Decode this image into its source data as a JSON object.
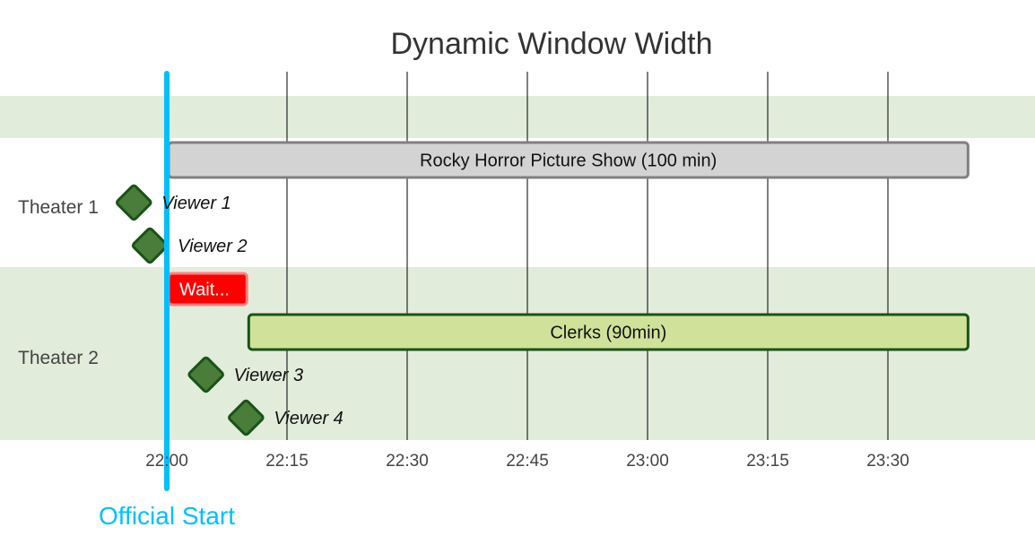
{
  "chart_data": {
    "type": "timeline",
    "title": "Dynamic Window Width",
    "x_ticks": [
      "22:00",
      "22:15",
      "22:30",
      "22:45",
      "23:00",
      "23:15",
      "23:30"
    ],
    "x_range_minutes": [
      -15,
      110
    ],
    "rows": [
      {
        "label": "Theater 1"
      },
      {
        "label": "Theater 2"
      }
    ],
    "tasks": [
      {
        "label": "Rocky Horror Picture Show (100 min)",
        "row": "Theater 1",
        "start": "22:00",
        "end": "23:40",
        "style": "movie1"
      },
      {
        "label": "Wait...",
        "row": "Theater 2",
        "start": "22:00",
        "end": "22:10",
        "style": "wait"
      },
      {
        "label": "Clerks (90min)",
        "row": "Theater 2",
        "start": "22:10",
        "end": "23:40",
        "style": "movie2"
      }
    ],
    "milestones": [
      {
        "label": "Viewer 1",
        "row": "Theater 1",
        "time": "21:56"
      },
      {
        "label": "Viewer 2",
        "row": "Theater 1",
        "time": "21:58"
      },
      {
        "label": "Viewer 3",
        "row": "Theater 2",
        "time": "22:05"
      },
      {
        "label": "Viewer 4",
        "row": "Theater 2",
        "time": "22:10"
      }
    ],
    "marker": {
      "label": "Official Start",
      "time": "22:00"
    },
    "colors": {
      "row_band": "#e1ecdb",
      "movie1_fill": "#d3d3d3",
      "movie1_border": "#808080",
      "wait_fill": "#ff0000",
      "wait_border": "#ff8080",
      "movie2_fill": "#d0e29a",
      "movie2_border": "#1a5218",
      "milestone_fill": "#4a7c3a",
      "milestone_border": "#1a5218",
      "marker": "#00bfff",
      "grid": "#000000"
    }
  }
}
